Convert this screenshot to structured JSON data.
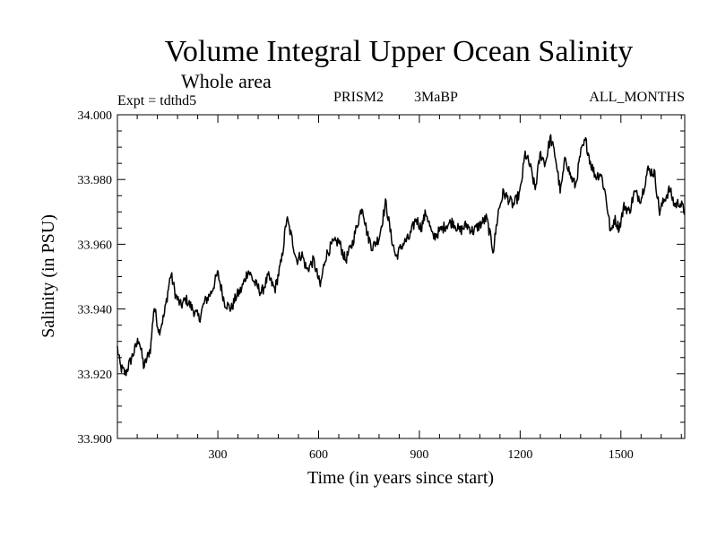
{
  "chart_data": {
    "type": "line",
    "title": "Volume Integral Upper Ocean Salinity",
    "subtitle": "Whole area",
    "expt_label": "Expt = tdthd5",
    "run_labels": [
      "PRISM2",
      "3MaBP"
    ],
    "period_label": "ALL_MONTHS",
    "xlabel": "Time (in years since start)",
    "ylabel": "Salinity (in PSU)",
    "xlim": [
      1,
      1690
    ],
    "ylim": [
      33.9,
      34.0
    ],
    "xticks": [
      300,
      600,
      900,
      1200,
      1500
    ],
    "yticks": [
      "34.000",
      "33.980",
      "33.960",
      "33.940",
      "33.920",
      "33.900"
    ],
    "grid": false,
    "legend": "none",
    "series": [
      {
        "name": "Salinity",
        "anchors": {
          "x": [
            1,
            10,
            25,
            40,
            55,
            65,
            80,
            100,
            110,
            125,
            140,
            160,
            175,
            190,
            205,
            225,
            245,
            260,
            280,
            300,
            320,
            340,
            355,
            370,
            390,
            410,
            430,
            450,
            470,
            490,
            505,
            520,
            535,
            550,
            565,
            585,
            605,
            620,
            640,
            660,
            680,
            700,
            715,
            730,
            745,
            760,
            780,
            800,
            815,
            830,
            850,
            870,
            890,
            905,
            920,
            940,
            960,
            980,
            1000,
            1020,
            1040,
            1060,
            1080,
            1100,
            1120,
            1135,
            1150,
            1165,
            1180,
            1200,
            1215,
            1230,
            1245,
            1260,
            1275,
            1290,
            1305,
            1320,
            1335,
            1350,
            1365,
            1380,
            1395,
            1410,
            1425,
            1440,
            1455,
            1470,
            1480,
            1495,
            1510,
            1525,
            1540,
            1560,
            1580,
            1600,
            1615,
            1630,
            1645,
            1660,
            1675,
            1690
          ],
          "y": [
            33.928,
            33.922,
            33.92,
            33.924,
            33.928,
            33.931,
            33.922,
            33.928,
            33.941,
            33.933,
            33.938,
            33.951,
            33.944,
            33.941,
            33.943,
            33.94,
            33.937,
            33.942,
            33.945,
            33.951,
            33.942,
            33.94,
            33.944,
            33.946,
            33.952,
            33.948,
            33.945,
            33.95,
            33.946,
            33.955,
            33.968,
            33.962,
            33.955,
            33.957,
            33.952,
            33.955,
            33.947,
            33.956,
            33.96,
            33.961,
            33.955,
            33.96,
            33.966,
            33.972,
            33.963,
            33.959,
            33.962,
            33.973,
            33.963,
            33.956,
            33.96,
            33.962,
            33.968,
            33.965,
            33.97,
            33.962,
            33.964,
            33.966,
            33.967,
            33.964,
            33.966,
            33.964,
            33.966,
            33.968,
            33.958,
            33.97,
            33.976,
            33.974,
            33.972,
            33.976,
            33.988,
            33.984,
            33.977,
            33.988,
            33.985,
            33.993,
            33.987,
            33.976,
            33.987,
            33.981,
            33.978,
            33.988,
            33.992,
            33.985,
            33.981,
            33.982,
            33.975,
            33.963,
            33.968,
            33.965,
            33.972,
            33.97,
            33.976,
            33.974,
            33.983,
            33.982,
            33.97,
            33.974,
            33.977,
            33.972,
            33.973,
            33.97
          ]
        }
      }
    ]
  }
}
